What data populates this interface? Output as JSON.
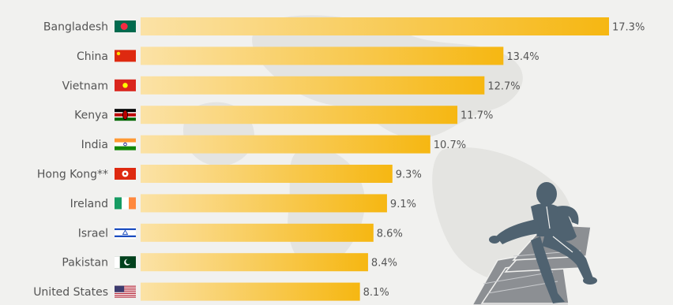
{
  "chart_data": {
    "type": "bar",
    "orientation": "horizontal",
    "categories": [
      "Bangladesh",
      "China",
      "Vietnam",
      "Kenya",
      "India",
      "Hong Kong**",
      "Ireland",
      "Israel",
      "Pakistan",
      "United States"
    ],
    "values": [
      17.3,
      13.4,
      12.7,
      11.7,
      10.7,
      9.3,
      9.1,
      8.6,
      8.4,
      8.1
    ],
    "value_labels": [
      "17.3%",
      "13.4%",
      "12.7%",
      "11.7%",
      "10.7%",
      "9.3%",
      "9.1%",
      "8.6%",
      "8.4%",
      "8.1%"
    ],
    "flags": [
      "flag-bangladesh-icon",
      "flag-china-icon",
      "flag-vietnam-icon",
      "flag-kenya-icon",
      "flag-india-icon",
      "flag-hong-kong-icon",
      "flag-ireland-icon",
      "flag-israel-icon",
      "flag-pakistan-icon",
      "flag-united-states-icon"
    ],
    "xlim": [
      0,
      17.3
    ],
    "grid": false,
    "legend": "none",
    "colors": {
      "bar_start": "#fbe2a6",
      "bar_end": "#f6b712",
      "text": "#555555",
      "background": "#f1f1ef"
    }
  },
  "decorations": {
    "background": "world-map-icon",
    "illustration": "businessman-on-money-icon"
  }
}
